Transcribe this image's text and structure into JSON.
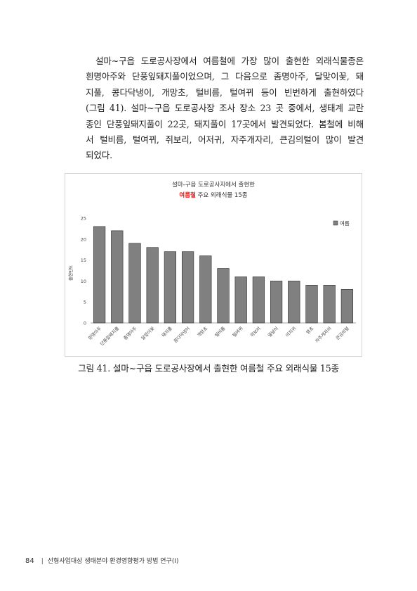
{
  "body_lines": [
    "설마~구읍 도로공사장에서 여름철에 가장 많이 출현한 외래식물종은",
    "흰명아주와 단풍잎돼지풀이었으며, 그 다음으로 좀명아주, 달맞이꽃, 돼",
    "지풀, 콩다닥냉이, 개망초, 털비름, 털여뀌 등이 빈번하게 출현하였다",
    "(그림 41). 설마~구읍 도로공사장 조사 장소 23 곳 중에서, 생태계 교란",
    "종인 단풍잎돼지풀이 22곳, 돼지풀이 17곳에서 발견되었다. 봄철에 비해",
    "서 털비름, 털여뀌, 쥐보리, 어저귀, 자주개자리, 큰김의털이 많이 발견",
    "되었다."
  ],
  "caption": "그림 41. 설마~구읍 도로공사장에서 출현한 여름철 주요 외래식물 15종",
  "footer": {
    "page_number": "84",
    "separator": "|",
    "series_title": "선형사업대상 생태분야 환경영향평가 방법 연구(Ⅰ)"
  },
  "colors": {
    "bar_fill": "#808080",
    "bar_stroke": "#2b2b2b",
    "title_highlight": "#ff0000"
  },
  "chart_data": {
    "type": "bar",
    "title_line1": "설마-구읍 도로공사지에서 출현한",
    "title_highlight": "여름철",
    "title_rest": " 주요 외래식물 15종",
    "ylabel": "출현빈도",
    "xlabel": "",
    "ylim": [
      0,
      25
    ],
    "yticks": [
      0,
      5,
      10,
      15,
      20,
      25
    ],
    "legend": "여름",
    "legend_position": "top-right",
    "grid": false,
    "categories": [
      "흰명아주",
      "단풍잎돼지풀",
      "좀명아주",
      "달맞이꽃",
      "돼지풀",
      "콩다닥냉이",
      "개망초",
      "털비름",
      "털여뀌",
      "쥐보리",
      "얼날이",
      "어저귀",
      "명초",
      "자주개자리",
      "큰김의털"
    ],
    "series": [
      {
        "name": "여름",
        "values": [
          23,
          22,
          19,
          18,
          17,
          17,
          16,
          13,
          11,
          11,
          10,
          10,
          9,
          9,
          8
        ]
      }
    ]
  }
}
